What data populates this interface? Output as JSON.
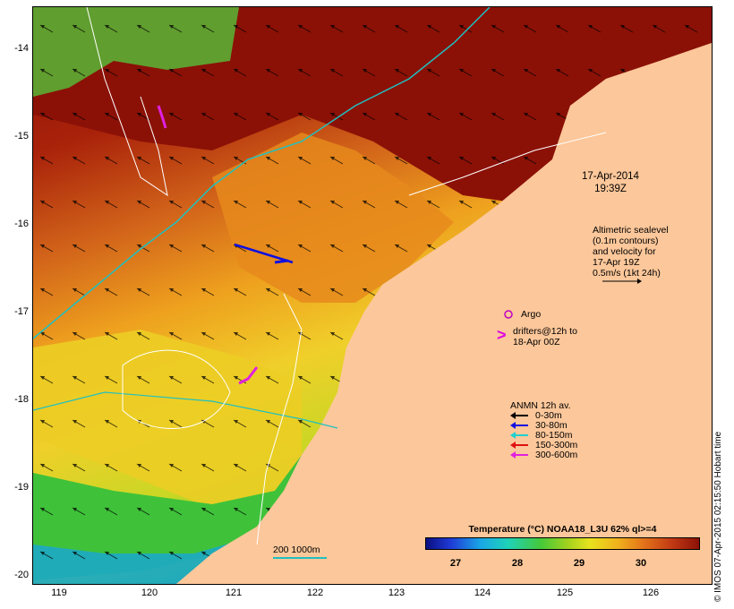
{
  "map": {
    "y_ticks": [
      "-14",
      "-15",
      "-16",
      "-17",
      "-18",
      "-19",
      "-20"
    ],
    "x_ticks": [
      "119",
      "120",
      "121",
      "122",
      "123",
      "124",
      "125",
      "126"
    ],
    "lat_range": [
      -20.1,
      -13.6
    ],
    "lon_range": [
      118.6,
      126.7
    ]
  },
  "timestamp": {
    "date": "17-Apr-2014",
    "time": "19:39Z"
  },
  "altimetry_note": [
    "Altimetric sealevel",
    "(0.1m contours)",
    "and velocity for",
    "17-Apr 19Z",
    "0.5m/s (1kt 24h)"
  ],
  "argo": {
    "label": "Argo",
    "color": "#c000c0"
  },
  "drifters": {
    "label_line1": "drifters@12h to",
    "label_line2": "18-Apr 00Z",
    "color": "#e000e0"
  },
  "legend": {
    "title": "ANMN 12h av.",
    "items": [
      {
        "label": "0-30m",
        "color": "#000000"
      },
      {
        "label": "30-80m",
        "color": "#1010e0"
      },
      {
        "label": "80-150m",
        "color": "#20d0d0"
      },
      {
        "label": "150-300m",
        "color": "#e01010"
      },
      {
        "label": "300-600m",
        "color": "#e020e0"
      }
    ]
  },
  "depth_scale": {
    "label": "200  1000m",
    "color": "#20c0c0"
  },
  "colorbar": {
    "title": "Temperature (°C) NOAA18_L3U 62% ql>=4",
    "labels": [
      "27",
      "28",
      "29",
      "30"
    ],
    "range": [
      26.4,
      30.8
    ]
  },
  "credit": "© IMOS 07-Apr-2015 02:15:50 Hobart time",
  "colors": {
    "land": "#fcc79a",
    "warm": "#8b1107",
    "cool": "#45c93a"
  }
}
